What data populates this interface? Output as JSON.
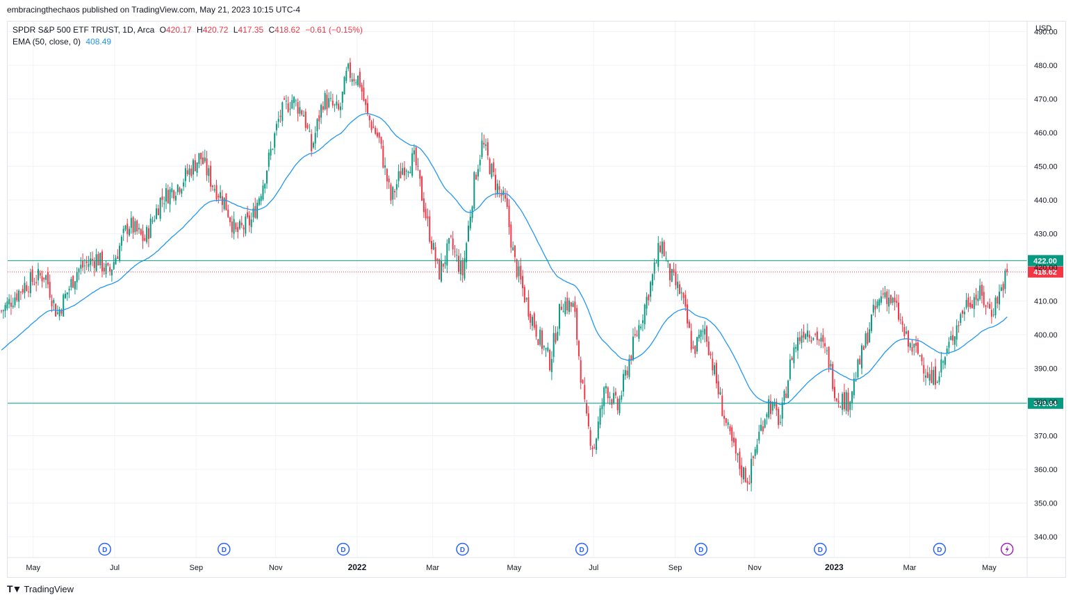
{
  "header": {
    "published": "embracingthechaos published on TradingView.com, May 21, 2023 10:15 UTC-4"
  },
  "legend": {
    "symbol": "SPDR S&P 500 ETF TRUST, 1D, Arca",
    "open_label": "O",
    "open": "420.17",
    "high_label": "H",
    "high": "420.72",
    "low_label": "L",
    "low": "417.35",
    "close_label": "C",
    "close": "418.62",
    "change": "−0.61 (−0.15%)",
    "ema_label": "EMA (50, close, 0)",
    "ema_value": "408.49"
  },
  "footer": {
    "brand": "TradingView"
  },
  "colors": {
    "up": "#089981",
    "down": "#f23645",
    "ema": "#2196f3",
    "hline": "#089981",
    "dividend": "#2962ff",
    "flash": "#9c27b0"
  },
  "chart_data": {
    "type": "candlestick",
    "currency": "USD",
    "ylim": [
      335,
      493
    ],
    "price_ticks": [
      "490.00",
      "480.00",
      "470.00",
      "460.00",
      "450.00",
      "440.00",
      "430.00",
      "420.00",
      "410.00",
      "400.00",
      "390.00",
      "380.00",
      "370.00",
      "360.00",
      "350.00",
      "340.00"
    ],
    "time_labels": [
      {
        "label": "May",
        "m": 0.8
      },
      {
        "label": "Jul",
        "m": 2.85
      },
      {
        "label": "Sep",
        "m": 4.9
      },
      {
        "label": "Nov",
        "m": 6.9
      },
      {
        "label": "2022",
        "m": 8.95
      },
      {
        "label": "Mar",
        "m": 10.85
      },
      {
        "label": "May",
        "m": 12.9
      },
      {
        "label": "Jul",
        "m": 14.9
      },
      {
        "label": "Sep",
        "m": 16.95
      },
      {
        "label": "Nov",
        "m": 18.95
      },
      {
        "label": "2023",
        "m": 20.95
      },
      {
        "label": "Mar",
        "m": 22.85
      },
      {
        "label": "May",
        "m": 24.85
      }
    ],
    "dividends": [
      {
        "m": 2.6
      },
      {
        "m": 5.6
      },
      {
        "m": 8.6
      },
      {
        "m": 11.6
      },
      {
        "m": 14.6
      },
      {
        "m": 17.6
      },
      {
        "m": 20.6
      },
      {
        "m": 23.6
      }
    ],
    "horizontal_levels": [
      {
        "value": 422.0,
        "label": "422.00"
      },
      {
        "value": 379.64,
        "label": "379.64"
      }
    ],
    "last_price": {
      "value": 418.62,
      "label": "418.62"
    },
    "price_path": [
      {
        "m": 0.0,
        "v": 407
      },
      {
        "m": 0.6,
        "v": 415
      },
      {
        "m": 1.1,
        "v": 418
      },
      {
        "m": 1.4,
        "v": 406
      },
      {
        "m": 1.9,
        "v": 419
      },
      {
        "m": 2.4,
        "v": 423
      },
      {
        "m": 2.7,
        "v": 418
      },
      {
        "m": 3.2,
        "v": 433
      },
      {
        "m": 3.6,
        "v": 428
      },
      {
        "m": 4.0,
        "v": 440
      },
      {
        "m": 4.5,
        "v": 445
      },
      {
        "m": 5.0,
        "v": 453
      },
      {
        "m": 5.3,
        "v": 445
      },
      {
        "m": 5.6,
        "v": 440
      },
      {
        "m": 5.9,
        "v": 430
      },
      {
        "m": 6.3,
        "v": 434
      },
      {
        "m": 6.6,
        "v": 446
      },
      {
        "m": 7.0,
        "v": 465
      },
      {
        "m": 7.3,
        "v": 470
      },
      {
        "m": 7.6,
        "v": 466
      },
      {
        "m": 7.8,
        "v": 455
      },
      {
        "m": 8.1,
        "v": 470
      },
      {
        "m": 8.5,
        "v": 466
      },
      {
        "m": 8.7,
        "v": 478
      },
      {
        "m": 9.0,
        "v": 476
      },
      {
        "m": 9.2,
        "v": 465
      },
      {
        "m": 9.5,
        "v": 458
      },
      {
        "m": 9.8,
        "v": 440
      },
      {
        "m": 10.1,
        "v": 450
      },
      {
        "m": 10.4,
        "v": 452
      },
      {
        "m": 10.7,
        "v": 434
      },
      {
        "m": 11.0,
        "v": 418
      },
      {
        "m": 11.3,
        "v": 427
      },
      {
        "m": 11.6,
        "v": 418
      },
      {
        "m": 11.9,
        "v": 446
      },
      {
        "m": 12.1,
        "v": 457
      },
      {
        "m": 12.4,
        "v": 446
      },
      {
        "m": 12.7,
        "v": 438
      },
      {
        "m": 12.9,
        "v": 422
      },
      {
        "m": 13.2,
        "v": 410
      },
      {
        "m": 13.5,
        "v": 400
      },
      {
        "m": 13.8,
        "v": 392
      },
      {
        "m": 14.1,
        "v": 410
      },
      {
        "m": 14.4,
        "v": 408
      },
      {
        "m": 14.7,
        "v": 375
      },
      {
        "m": 14.9,
        "v": 366
      },
      {
        "m": 15.2,
        "v": 385
      },
      {
        "m": 15.5,
        "v": 378
      },
      {
        "m": 15.8,
        "v": 393
      },
      {
        "m": 16.1,
        "v": 405
      },
      {
        "m": 16.4,
        "v": 418
      },
      {
        "m": 16.6,
        "v": 428
      },
      {
        "m": 16.8,
        "v": 418
      },
      {
        "m": 17.1,
        "v": 412
      },
      {
        "m": 17.4,
        "v": 395
      },
      {
        "m": 17.7,
        "v": 402
      },
      {
        "m": 18.0,
        "v": 385
      },
      {
        "m": 18.3,
        "v": 370
      },
      {
        "m": 18.6,
        "v": 360
      },
      {
        "m": 18.8,
        "v": 357
      },
      {
        "m": 19.0,
        "v": 368
      },
      {
        "m": 19.3,
        "v": 380
      },
      {
        "m": 19.6,
        "v": 374
      },
      {
        "m": 19.9,
        "v": 395
      },
      {
        "m": 20.2,
        "v": 402
      },
      {
        "m": 20.5,
        "v": 400
      },
      {
        "m": 20.8,
        "v": 393
      },
      {
        "m": 21.0,
        "v": 382
      },
      {
        "m": 21.3,
        "v": 380
      },
      {
        "m": 21.6,
        "v": 392
      },
      {
        "m": 21.9,
        "v": 405
      },
      {
        "m": 22.2,
        "v": 413
      },
      {
        "m": 22.5,
        "v": 408
      },
      {
        "m": 22.8,
        "v": 397
      },
      {
        "m": 23.1,
        "v": 394
      },
      {
        "m": 23.4,
        "v": 386
      },
      {
        "m": 23.7,
        "v": 392
      },
      {
        "m": 24.0,
        "v": 402
      },
      {
        "m": 24.3,
        "v": 410
      },
      {
        "m": 24.6,
        "v": 412
      },
      {
        "m": 24.9,
        "v": 407
      },
      {
        "m": 25.1,
        "v": 412
      },
      {
        "m": 25.3,
        "v": 418.6
      }
    ]
  }
}
